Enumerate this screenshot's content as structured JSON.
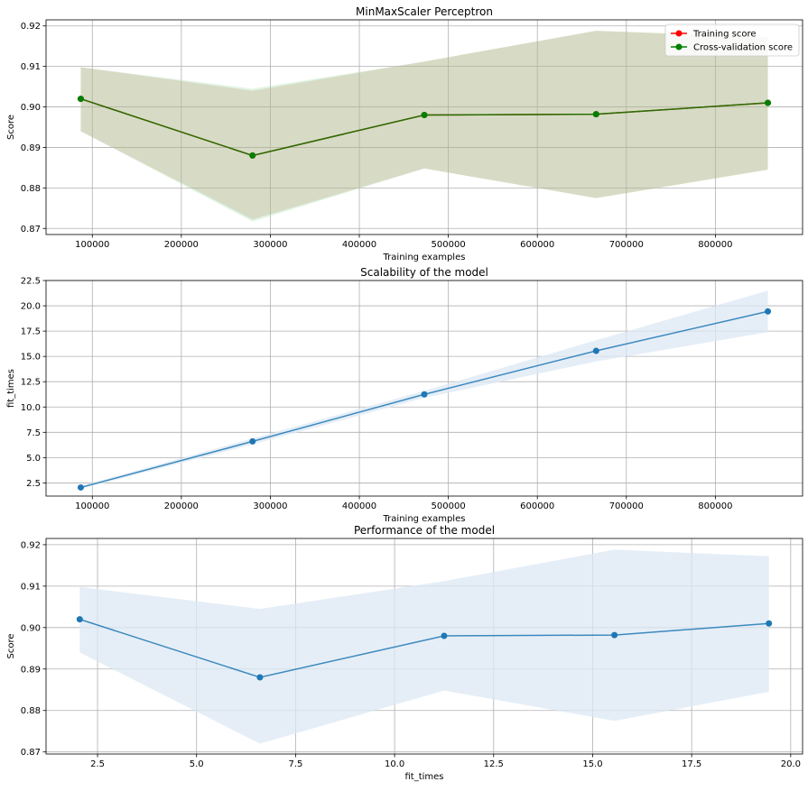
{
  "colors": {
    "train": "#ff0000",
    "cv": "#008000",
    "curve": "#1f77b4",
    "band_train": "#cc8866",
    "band_cv": "#9fd9a8",
    "band_blue": "#dce8f4",
    "grid": "#b0b0b0"
  },
  "chart_data": [
    {
      "type": "line",
      "title": "MinMaxScaler Perceptron",
      "xlabel": "Training examples",
      "ylabel": "Score",
      "xlim": [
        48000,
        898000
      ],
      "ylim": [
        0.8685,
        0.9215
      ],
      "xticks": [
        100000,
        200000,
        300000,
        400000,
        500000,
        600000,
        700000,
        800000
      ],
      "xtick_labels": [
        "100000",
        "200000",
        "300000",
        "400000",
        "500000",
        "600000",
        "700000",
        "800000"
      ],
      "yticks": [
        0.87,
        0.88,
        0.89,
        0.9,
        0.91,
        0.92
      ],
      "ytick_labels": [
        "0.87",
        "0.88",
        "0.89",
        "0.90",
        "0.91",
        "0.92"
      ],
      "grid": true,
      "legend": "top-right",
      "x": [
        87000,
        280000,
        473000,
        666000,
        859000
      ],
      "series": [
        {
          "name": "Training score",
          "color_key": "train",
          "values": [
            0.902,
            0.888,
            0.898,
            0.8982,
            0.901
          ],
          "band_low": [
            0.894,
            0.8722,
            0.8848,
            0.8775,
            0.8845
          ],
          "band_high": [
            0.9098,
            0.904,
            0.9112,
            0.9188,
            0.9172
          ]
        },
        {
          "name": "Cross-validation score",
          "color_key": "cv",
          "values": [
            0.902,
            0.888,
            0.898,
            0.8982,
            0.901
          ],
          "band_low": [
            0.894,
            0.8717,
            0.8848,
            0.8775,
            0.8845
          ],
          "band_high": [
            0.9098,
            0.9045,
            0.9112,
            0.9188,
            0.9172
          ]
        }
      ]
    },
    {
      "type": "line",
      "title": "Scalability of the model",
      "xlabel": "Training examples",
      "ylabel": "fit_times",
      "xlim": [
        48000,
        898000
      ],
      "ylim": [
        1.2,
        22.5
      ],
      "xticks": [
        100000,
        200000,
        300000,
        400000,
        500000,
        600000,
        700000,
        800000
      ],
      "xtick_labels": [
        "100000",
        "200000",
        "300000",
        "400000",
        "500000",
        "600000",
        "700000",
        "800000"
      ],
      "yticks": [
        2.5,
        5.0,
        7.5,
        10.0,
        12.5,
        15.0,
        17.5,
        20.0,
        22.5
      ],
      "ytick_labels": [
        "2.5",
        "5.0",
        "7.5",
        "10.0",
        "12.5",
        "15.0",
        "17.5",
        "20.0",
        "22.5"
      ],
      "grid": true,
      "x": [
        87000,
        280000,
        473000,
        666000,
        859000
      ],
      "series": [
        {
          "color_key": "curve",
          "values": [
            2.05,
            6.6,
            11.25,
            15.55,
            19.45
          ],
          "band_low": [
            1.9,
            6.3,
            10.9,
            14.5,
            17.4
          ],
          "band_high": [
            2.2,
            6.9,
            11.6,
            16.6,
            21.5
          ]
        }
      ]
    },
    {
      "type": "line",
      "title": "Performance of the model",
      "xlabel": "fit_times",
      "ylabel": "Score",
      "xlim": [
        1.2,
        20.3
      ],
      "ylim": [
        0.8695,
        0.9215
      ],
      "xticks": [
        2.5,
        5.0,
        7.5,
        10.0,
        12.5,
        15.0,
        17.5,
        20.0
      ],
      "xtick_labels": [
        "2.5",
        "5.0",
        "7.5",
        "10.0",
        "12.5",
        "15.0",
        "17.5",
        "20.0"
      ],
      "yticks": [
        0.87,
        0.88,
        0.89,
        0.9,
        0.91,
        0.92
      ],
      "ytick_labels": [
        "0.87",
        "0.88",
        "0.89",
        "0.90",
        "0.91",
        "0.92"
      ],
      "grid": true,
      "x": [
        2.05,
        6.6,
        11.25,
        15.55,
        19.45
      ],
      "series": [
        {
          "color_key": "curve",
          "values": [
            0.902,
            0.888,
            0.898,
            0.8982,
            0.901
          ],
          "band_low": [
            0.894,
            0.872,
            0.8848,
            0.8775,
            0.8845
          ],
          "band_high": [
            0.9098,
            0.9045,
            0.9112,
            0.9188,
            0.9172
          ]
        }
      ]
    }
  ]
}
